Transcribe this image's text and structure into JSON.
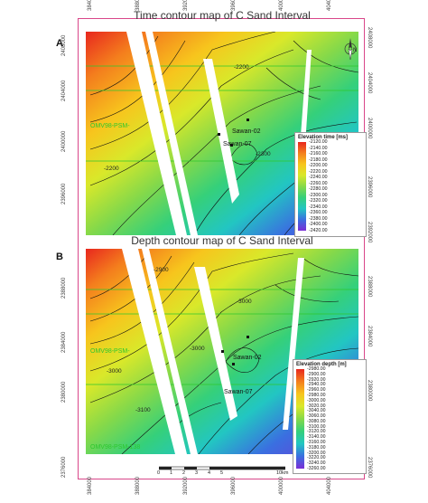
{
  "panel_a": {
    "letter": "A",
    "title": "Time contour map of C Sand Interval",
    "legend_title": "Elevation time [ms]",
    "legend_values": [
      "-2120.00",
      "-2140.00",
      "-2160.00",
      "-2180.00",
      "-2200.00",
      "-2220.00",
      "-2240.00",
      "-2260.00",
      "-2280.00",
      "-2300.00",
      "-2320.00",
      "-2340.00",
      "-2360.00",
      "-2380.00",
      "-2400.00",
      "-2420.00"
    ],
    "contour_labels": [
      "-2200",
      "-2200",
      "-2300"
    ],
    "wells": [
      "OMV98-PSM-",
      "Sawan-02",
      "Sawan-07"
    ]
  },
  "panel_b": {
    "letter": "B",
    "title": "Depth contour map of C Sand Interval",
    "legend_title": "Elevation depth [m]",
    "legend_values": [
      "-2980.00",
      "-2900.00",
      "-2920.00",
      "-2940.00",
      "-2960.00",
      "-2980.00",
      "-3000.00",
      "-3020.00",
      "-3040.00",
      "-3060.00",
      "-3080.00",
      "-3100.00",
      "-3120.00",
      "-3140.00",
      "-3160.00",
      "-3180.00",
      "-3200.00",
      "-3220.00",
      "-3240.00",
      "-3260.00"
    ],
    "contour_labels": [
      "-2900",
      "-3000",
      "-3000",
      "-3100",
      "-3000"
    ],
    "wells": [
      "OMV98-PSM-",
      "Sawan-02",
      "Sawan-07",
      "OMV98-PSM-138"
    ]
  },
  "x_ticks": [
    "384000",
    "388000",
    "392000",
    "396000",
    "400000",
    "404000"
  ],
  "y_ticks_a_left": [
    "2408000",
    "2404000",
    "2400000",
    "2396000"
  ],
  "y_ticks_a_right": [
    "2408000",
    "2404000",
    "2400000",
    "2396000",
    "2392000"
  ],
  "y_ticks_b_left": [
    "2388000",
    "2384000",
    "2380000"
  ],
  "y_ticks_b_right": [
    "2388000",
    "2384000",
    "2380000",
    "2376000"
  ],
  "y_tick_b_bottom_left": "2376000",
  "north_label": "N",
  "scale": {
    "labels": [
      "0",
      "1",
      "2",
      "3",
      "4",
      "5",
      "10km"
    ]
  },
  "colors": {
    "frame": "#d9478a",
    "well_line": "#2ec72e"
  }
}
